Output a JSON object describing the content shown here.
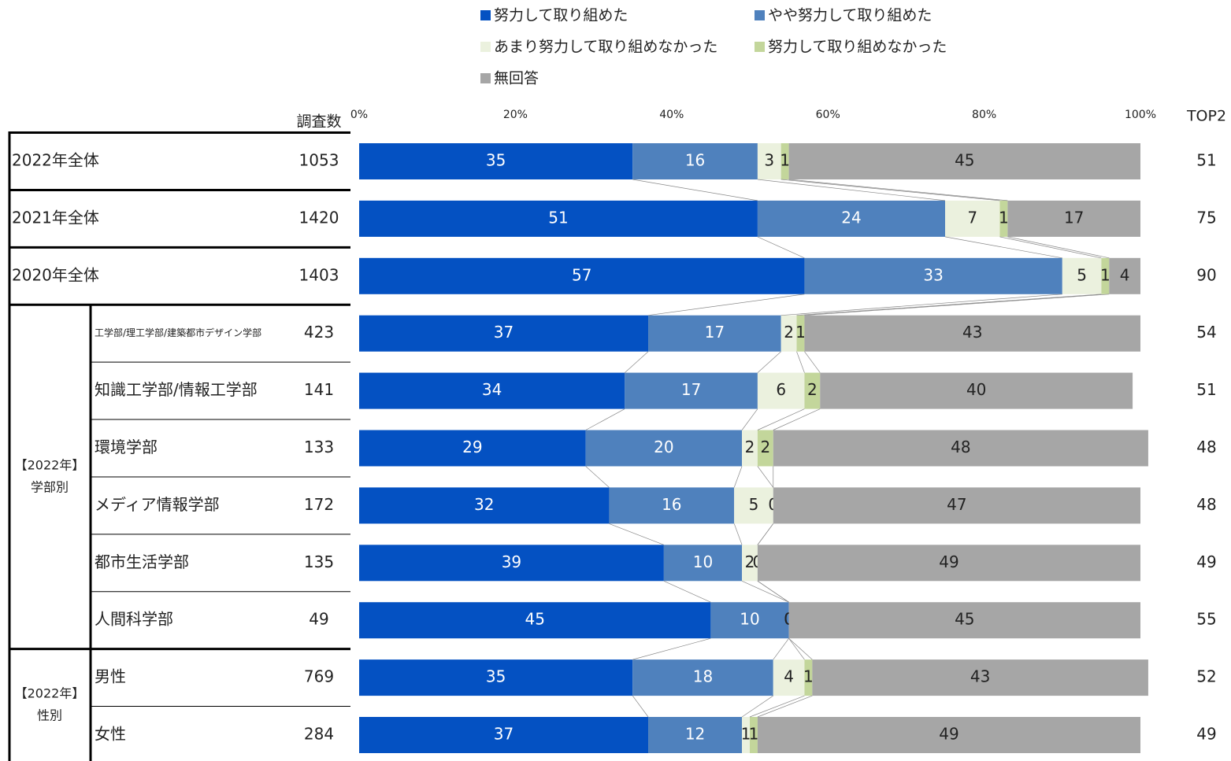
{
  "chart_data": {
    "type": "bar",
    "orientation": "horizontal",
    "stacked": true,
    "count_header": "調査数",
    "top2_header": "TOP2",
    "xlim": [
      0,
      100
    ],
    "xticks": [
      {
        "value": 0,
        "label": "0%"
      },
      {
        "value": 20,
        "label": "20%"
      },
      {
        "value": 40,
        "label": "40%"
      },
      {
        "value": 60,
        "label": "60%"
      },
      {
        "value": 80,
        "label": "80%"
      },
      {
        "value": 100,
        "label": "100%"
      }
    ],
    "categories": [
      "2022年全体",
      "2021年全体",
      "2020年全体",
      "工学部/理工学部/建築都市デザイン学部",
      "知識工学部/情報工学部",
      "環境学部",
      "メディア情報学部",
      "都市生活学部",
      "人間科学部",
      "男性",
      "女性"
    ],
    "counts": [
      1053,
      1420,
      1403,
      423,
      141,
      133,
      172,
      135,
      49,
      769,
      284
    ],
    "top2": [
      51,
      75,
      90,
      54,
      51,
      48,
      48,
      49,
      55,
      52,
      49
    ],
    "groups": [
      {
        "lines": [
          "【2022年】",
          "学部別"
        ]
      },
      {
        "lines": [
          "【2022年】",
          "性別"
        ]
      }
    ],
    "series": [
      {
        "name": "努力して取り組めた",
        "color": "#0451c2",
        "values": [
          35,
          51,
          57,
          37,
          34,
          29,
          32,
          39,
          45,
          35,
          37
        ]
      },
      {
        "name": "やや努力して取り組めた",
        "color": "#4f81bd",
        "values": [
          16,
          24,
          33,
          17,
          17,
          20,
          16,
          10,
          10,
          18,
          12
        ]
      },
      {
        "name": "あまり努力して取り組めなかった",
        "color": "#ebf1de",
        "values": [
          3,
          7,
          5,
          2,
          6,
          2,
          5,
          2,
          0,
          4,
          1
        ]
      },
      {
        "name": "努力して取り組めなかった",
        "color": "#c3d69b",
        "values": [
          1,
          1,
          1,
          1,
          2,
          2,
          0,
          0,
          0,
          1,
          1
        ]
      },
      {
        "name": "無回答",
        "color": "#a6a6a6",
        "values": [
          45,
          17,
          4,
          43,
          40,
          48,
          47,
          49,
          45,
          43,
          49
        ]
      }
    ]
  }
}
